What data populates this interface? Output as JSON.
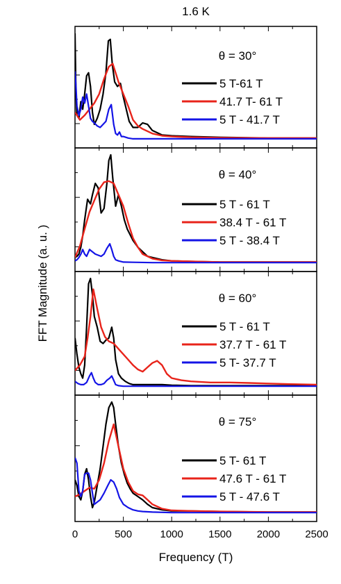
{
  "figure": {
    "title": "1.6 K",
    "ylabel": "FFT Magnitude (a. u. )",
    "xlabel": "Frequency (T)",
    "xticks": [
      "0",
      "500",
      "1000",
      "1500",
      "2000",
      "2500"
    ]
  },
  "chart_data": [
    {
      "type": "line",
      "annotation": "θ =  30°",
      "xlim": [
        0,
        2500
      ],
      "xlabel": "Frequency (T)",
      "ylabel": "FFT Magnitude (a. u. )",
      "legend_position": "right",
      "series": [
        {
          "name": "5 T-61 T",
          "color": "#000000",
          "x": [
            0,
            10,
            20,
            40,
            60,
            80,
            100,
            120,
            140,
            160,
            180,
            200,
            230,
            260,
            290,
            320,
            345,
            365,
            385,
            410,
            440,
            470,
            500,
            530,
            560,
            600,
            650,
            700,
            750,
            800,
            900,
            1000,
            1200,
            1500,
            2000,
            2500
          ],
          "y": [
            0.7,
            0.3,
            0.16,
            0.14,
            0.25,
            0.2,
            0.3,
            0.42,
            0.44,
            0.35,
            0.18,
            0.1,
            0.14,
            0.2,
            0.3,
            0.44,
            0.65,
            0.66,
            0.5,
            0.38,
            0.35,
            0.37,
            0.28,
            0.2,
            0.12,
            0.08,
            0.08,
            0.11,
            0.1,
            0.06,
            0.03,
            0.025,
            0.02,
            0.015,
            0.01,
            0.01
          ]
        },
        {
          "name": "41.7 T- 61 T",
          "color": "#e8231a",
          "x": [
            0,
            50,
            100,
            150,
            200,
            250,
            300,
            350,
            390,
            450,
            500,
            550,
            600,
            650,
            700,
            800,
            900,
            1000,
            1200,
            1500,
            2000,
            2500
          ],
          "y": [
            0.18,
            0.13,
            0.16,
            0.2,
            0.24,
            0.3,
            0.4,
            0.48,
            0.5,
            0.38,
            0.3,
            0.22,
            0.13,
            0.09,
            0.07,
            0.04,
            0.025,
            0.02,
            0.015,
            0.012,
            0.01,
            0.01
          ]
        },
        {
          "name": "5 T - 41.7 T",
          "color": "#1414e6",
          "x": [
            0,
            10,
            20,
            40,
            60,
            80,
            100,
            120,
            140,
            160,
            180,
            200,
            230,
            260,
            290,
            320,
            350,
            375,
            400,
            420,
            440,
            460,
            480,
            500,
            550,
            600,
            700,
            800,
            1000,
            1500,
            2000,
            2500
          ],
          "y": [
            0.45,
            0.35,
            0.22,
            0.16,
            0.2,
            0.28,
            0.24,
            0.3,
            0.22,
            0.14,
            0.12,
            0.11,
            0.09,
            0.08,
            0.1,
            0.12,
            0.2,
            0.23,
            0.1,
            0.04,
            0.03,
            0.05,
            0.02,
            0.02,
            0.01,
            0.005,
            0.005,
            0.005,
            0.005,
            0.005,
            0.005,
            0.005
          ]
        }
      ]
    },
    {
      "type": "line",
      "annotation": "θ =  40°",
      "xlim": [
        0,
        2500
      ],
      "xlabel": "Frequency (T)",
      "ylabel": "FFT Magnitude (a. u. )",
      "legend_position": "right",
      "series": [
        {
          "name": "5 T - 61 T",
          "color": "#000000",
          "x": [
            0,
            20,
            40,
            60,
            80,
            100,
            130,
            160,
            180,
            210,
            240,
            270,
            300,
            330,
            350,
            370,
            390,
            420,
            450,
            480,
            510,
            540,
            570,
            600,
            650,
            700,
            750,
            800,
            900,
            1000,
            1200,
            1500,
            2000,
            2500
          ],
          "y": [
            0.05,
            0.06,
            0.08,
            0.14,
            0.24,
            0.38,
            0.56,
            0.52,
            0.6,
            0.7,
            0.66,
            0.44,
            0.48,
            0.7,
            0.9,
            0.95,
            0.75,
            0.5,
            0.6,
            0.5,
            0.38,
            0.3,
            0.25,
            0.2,
            0.14,
            0.1,
            0.06,
            0.05,
            0.03,
            0.02,
            0.015,
            0.01,
            0.01,
            0.01
          ]
        },
        {
          "name": "38.4 T - 61 T",
          "color": "#e8231a",
          "x": [
            0,
            50,
            100,
            150,
            200,
            250,
            300,
            350,
            400,
            450,
            500,
            550,
            600,
            650,
            700,
            800,
            900,
            1000,
            1200,
            1500,
            2000,
            2500
          ],
          "y": [
            0.05,
            0.15,
            0.3,
            0.45,
            0.55,
            0.65,
            0.71,
            0.72,
            0.7,
            0.6,
            0.5,
            0.35,
            0.22,
            0.14,
            0.08,
            0.04,
            0.025,
            0.02,
            0.015,
            0.01,
            0.01,
            0.01
          ]
        },
        {
          "name": "5 T - 38.4 T",
          "color": "#1414e6",
          "x": [
            0,
            20,
            40,
            60,
            80,
            100,
            120,
            150,
            180,
            210,
            240,
            270,
            300,
            330,
            360,
            380,
            400,
            420,
            450,
            500,
            600,
            800,
            1000,
            1500,
            2000,
            2500
          ],
          "y": [
            0.02,
            0.03,
            0.05,
            0.08,
            0.12,
            0.08,
            0.06,
            0.12,
            0.1,
            0.08,
            0.07,
            0.06,
            0.08,
            0.13,
            0.17,
            0.12,
            0.06,
            0.03,
            0.02,
            0.01,
            0.008,
            0.005,
            0.005,
            0.005,
            0.005,
            0.005
          ]
        }
      ]
    },
    {
      "type": "line",
      "annotation": "θ =  60°",
      "xlim": [
        0,
        2500
      ],
      "xlabel": "Frequency (T)",
      "ylabel": "FFT Magnitude (a. u. )",
      "legend_position": "right",
      "series": [
        {
          "name": "5 T - 61 T",
          "color": "#000000",
          "x": [
            0,
            20,
            40,
            60,
            80,
            100,
            120,
            140,
            160,
            180,
            200,
            230,
            260,
            290,
            320,
            350,
            380,
            400,
            420,
            450,
            480,
            520,
            560,
            600,
            650,
            700,
            800,
            900,
            1000,
            1200,
            1500,
            2000,
            2500
          ],
          "y": [
            0.45,
            0.3,
            0.18,
            0.12,
            0.08,
            0.2,
            0.55,
            0.95,
            1.0,
            0.85,
            0.65,
            0.55,
            0.42,
            0.4,
            0.43,
            0.45,
            0.55,
            0.45,
            0.25,
            0.12,
            0.08,
            0.05,
            0.03,
            0.02,
            0.02,
            0.02,
            0.02,
            0.02,
            0.015,
            0.01,
            0.01,
            0.01,
            0.01
          ]
        },
        {
          "name": "37.7 T - 61 T",
          "color": "#e8231a",
          "x": [
            0,
            50,
            100,
            130,
            160,
            190,
            230,
            270,
            310,
            350,
            400,
            450,
            500,
            550,
            600,
            650,
            700,
            750,
            800,
            850,
            900,
            950,
            1000,
            1100,
            1200,
            1400,
            1600,
            1800,
            2000,
            2200,
            2500
          ],
          "y": [
            0.15,
            0.2,
            0.28,
            0.45,
            0.65,
            0.9,
            0.72,
            0.55,
            0.46,
            0.42,
            0.4,
            0.35,
            0.3,
            0.25,
            0.2,
            0.16,
            0.14,
            0.18,
            0.22,
            0.24,
            0.2,
            0.12,
            0.08,
            0.06,
            0.05,
            0.04,
            0.04,
            0.035,
            0.03,
            0.025,
            0.02
          ]
        },
        {
          "name": "5 T- 37.7 T",
          "color": "#1414e6",
          "x": [
            0,
            30,
            60,
            90,
            120,
            150,
            170,
            190,
            210,
            240,
            270,
            300,
            330,
            360,
            380,
            400,
            420,
            450,
            500,
            600,
            800,
            1000,
            1500,
            2000,
            2500
          ],
          "y": [
            0.05,
            0.03,
            0.02,
            0.02,
            0.04,
            0.1,
            0.13,
            0.08,
            0.04,
            0.02,
            0.02,
            0.03,
            0.06,
            0.08,
            0.1,
            0.06,
            0.02,
            0.01,
            0.005,
            0.005,
            0.005,
            0.005,
            0.005,
            0.005,
            0.005
          ]
        }
      ]
    },
    {
      "type": "line",
      "annotation": "θ =  75°",
      "xlim": [
        0,
        2500
      ],
      "xlabel": "Frequency (T)",
      "ylabel": "FFT Magnitude (a. u. )",
      "legend_position": "right",
      "series": [
        {
          "name": "5 T- 61 T",
          "color": "#000000",
          "x": [
            0,
            20,
            40,
            60,
            80,
            100,
            120,
            140,
            160,
            180,
            200,
            230,
            260,
            290,
            320,
            350,
            380,
            400,
            420,
            450,
            480,
            510,
            540,
            570,
            600,
            650,
            700,
            750,
            800,
            900,
            1000,
            1200,
            1500,
            2000,
            2500
          ],
          "y": [
            0.3,
            0.25,
            0.15,
            0.12,
            0.2,
            0.35,
            0.4,
            0.3,
            0.15,
            0.05,
            0.1,
            0.25,
            0.4,
            0.6,
            0.8,
            0.95,
            1.0,
            0.95,
            0.8,
            0.6,
            0.45,
            0.35,
            0.27,
            0.22,
            0.18,
            0.15,
            0.12,
            0.08,
            0.05,
            0.03,
            0.02,
            0.02,
            0.015,
            0.01,
            0.01
          ]
        },
        {
          "name": "47.6 T - 61 T",
          "color": "#e8231a",
          "x": [
            0,
            50,
            100,
            150,
            200,
            250,
            300,
            350,
            400,
            450,
            500,
            550,
            600,
            650,
            700,
            750,
            800,
            900,
            1000,
            1200,
            1500,
            2000,
            2500
          ],
          "y": [
            0.15,
            0.17,
            0.2,
            0.23,
            0.22,
            0.3,
            0.45,
            0.65,
            0.8,
            0.6,
            0.4,
            0.28,
            0.2,
            0.17,
            0.16,
            0.12,
            0.08,
            0.04,
            0.025,
            0.02,
            0.015,
            0.01,
            0.01
          ]
        },
        {
          "name": "5 T - 47.6 T",
          "color": "#1414e6",
          "x": [
            0,
            20,
            40,
            60,
            80,
            100,
            120,
            140,
            160,
            180,
            200,
            230,
            260,
            300,
            340,
            370,
            400,
            430,
            460,
            500,
            550,
            600,
            650,
            700,
            800,
            1000,
            1500,
            2000,
            2500
          ],
          "y": [
            0.5,
            0.45,
            0.2,
            0.15,
            0.2,
            0.35,
            0.36,
            0.36,
            0.3,
            0.18,
            0.08,
            0.1,
            0.12,
            0.18,
            0.25,
            0.3,
            0.28,
            0.22,
            0.14,
            0.08,
            0.05,
            0.03,
            0.02,
            0.015,
            0.01,
            0.005,
            0.005,
            0.005,
            0.005
          ]
        }
      ]
    }
  ]
}
